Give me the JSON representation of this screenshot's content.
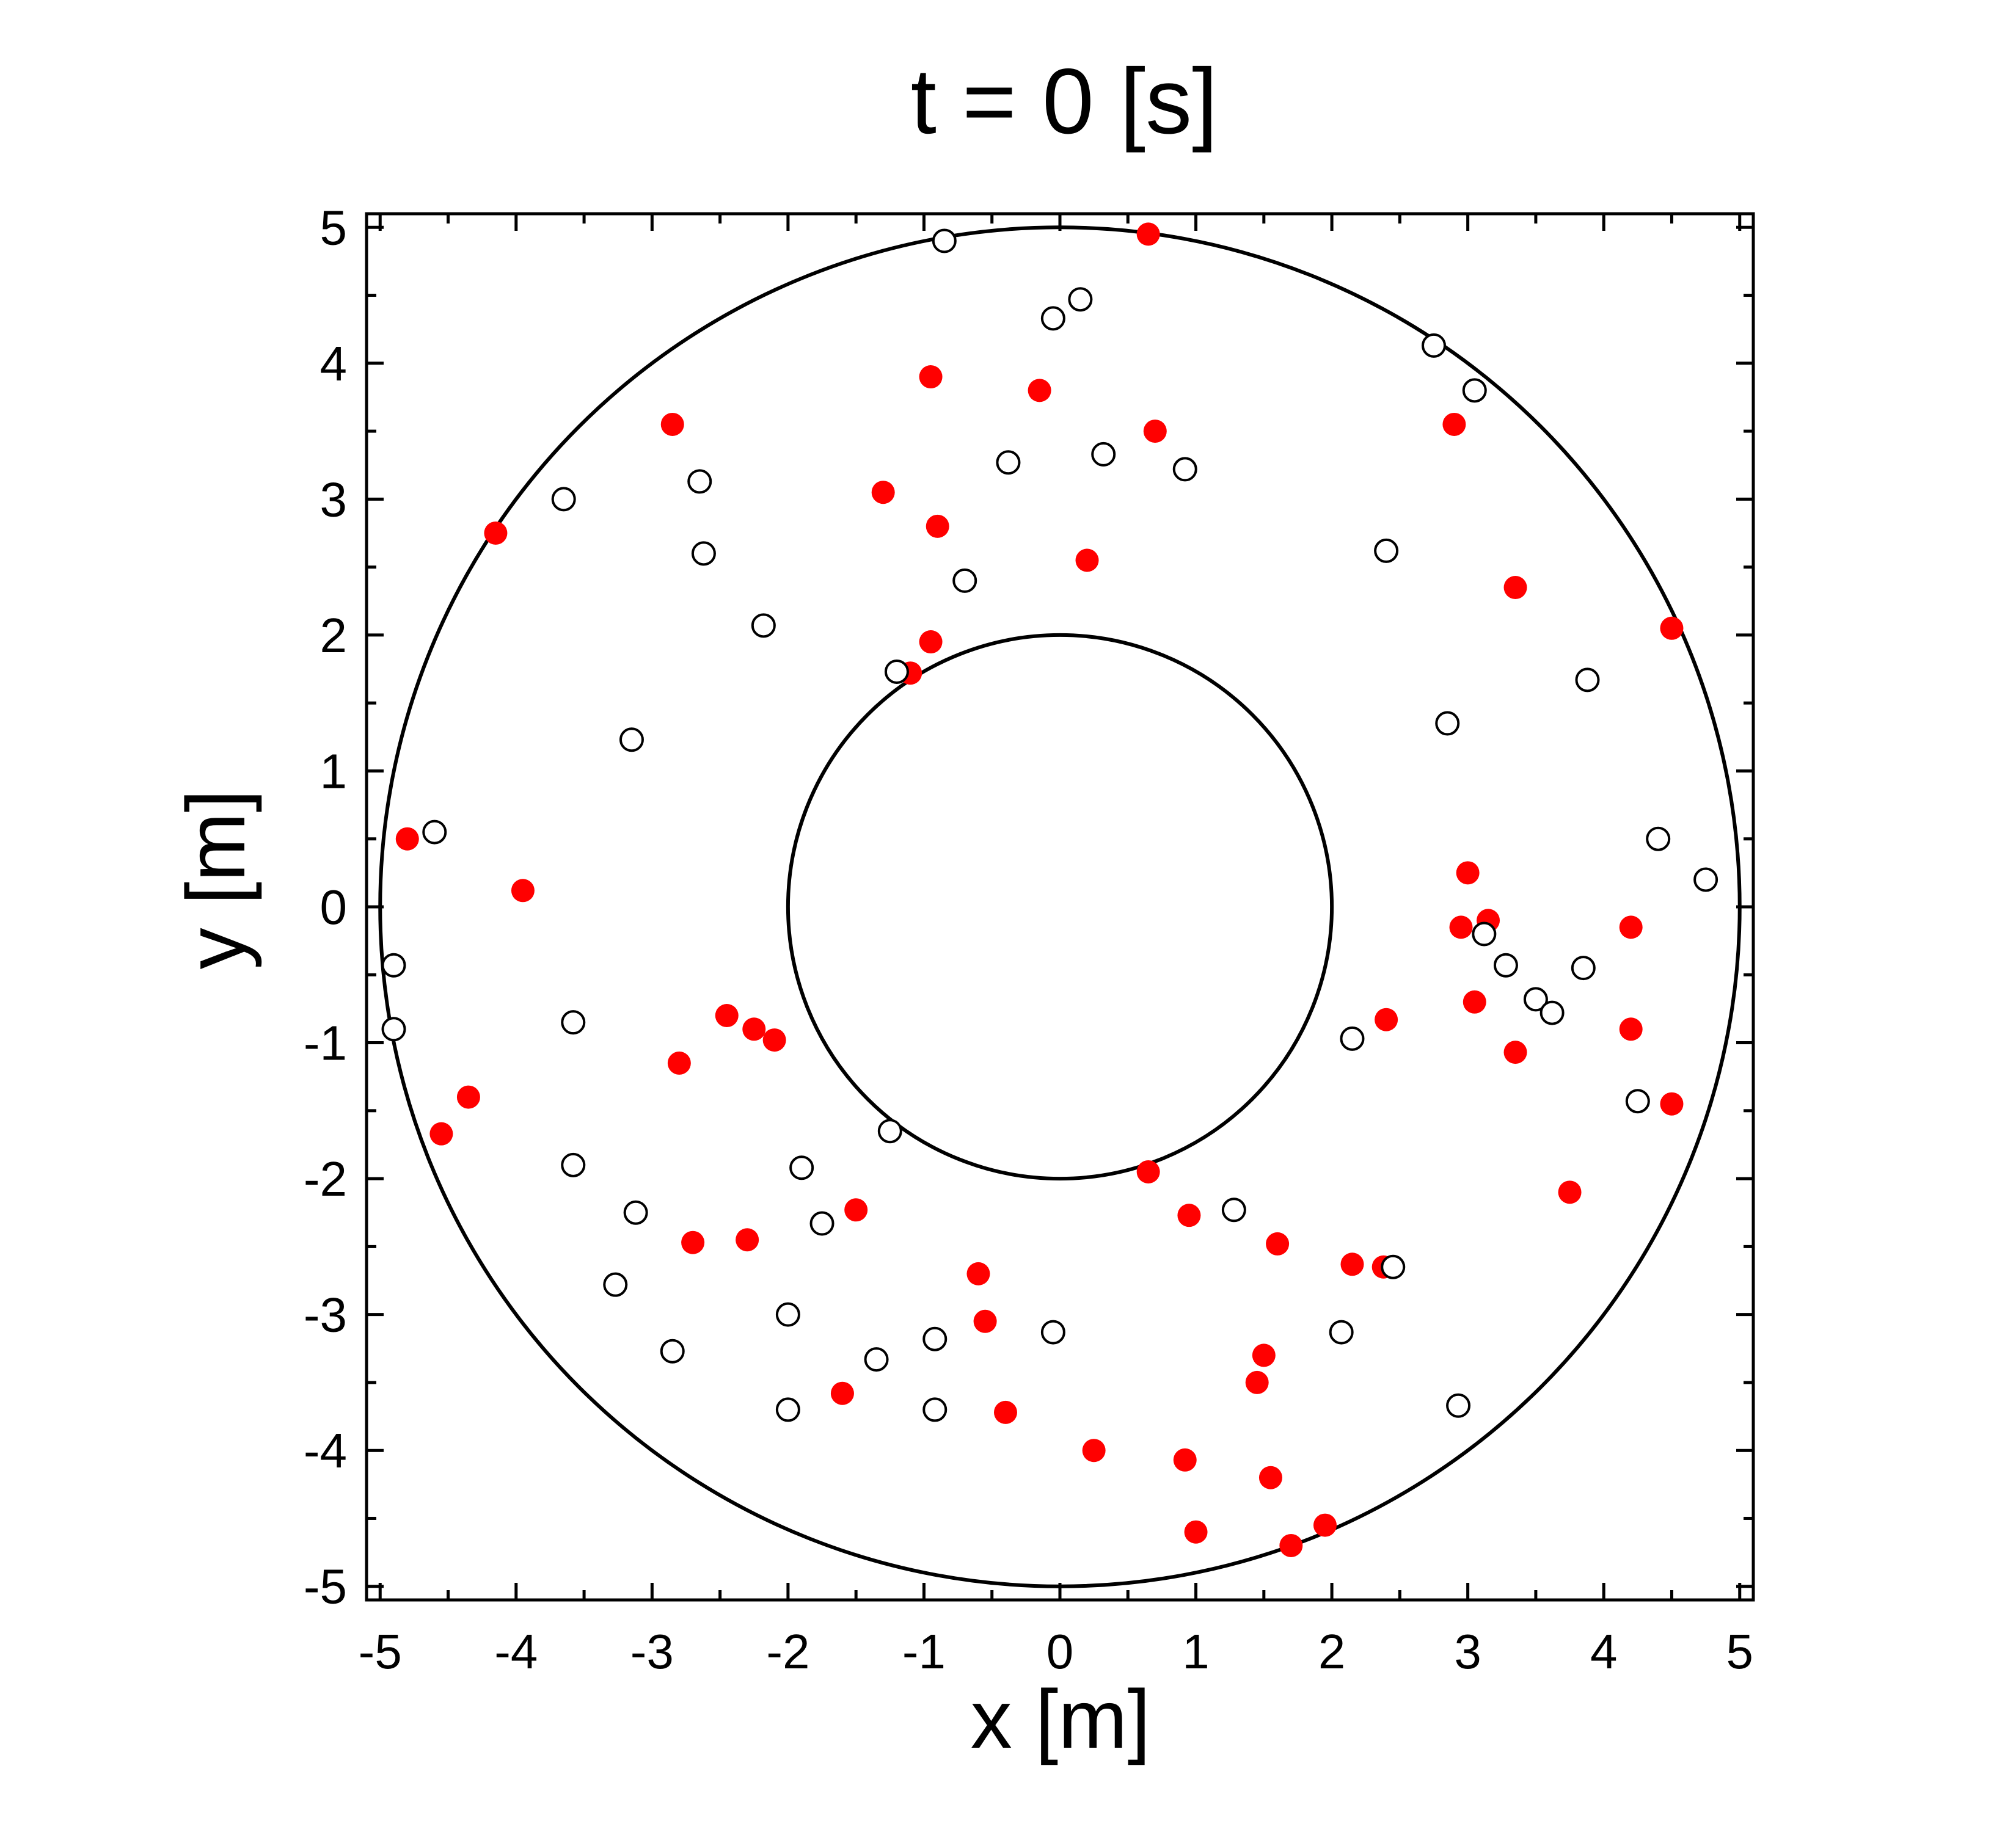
{
  "chart_data": {
    "type": "scatter",
    "title": "t = 0 [s]",
    "xlabel": "x [m]",
    "ylabel": "y [m]",
    "xlim": [
      -5.1,
      5.1
    ],
    "ylim": [
      -5.1,
      5.1
    ],
    "xticks": [
      "-5",
      "-4",
      "-3",
      "-2",
      "-1",
      "0",
      "1",
      "2",
      "3",
      "4",
      "5"
    ],
    "yticks": [
      "5",
      "4",
      "3",
      "2",
      "1",
      "0",
      "-1",
      "-2",
      "-3",
      "-4",
      "-5"
    ],
    "grid": false,
    "legend": "none",
    "boundaries": [
      {
        "shape": "circle",
        "center": [
          0,
          0
        ],
        "radius": 5
      },
      {
        "shape": "circle",
        "center": [
          0,
          0
        ],
        "radius": 2
      }
    ],
    "series": [
      {
        "marker": "filled-circle",
        "color": "#ff0000",
        "points": [
          [
            0.65,
            4.95
          ],
          [
            -0.95,
            3.9
          ],
          [
            -0.15,
            3.8
          ],
          [
            0.7,
            3.5
          ],
          [
            -2.85,
            3.55
          ],
          [
            2.9,
            3.55
          ],
          [
            -1.3,
            3.05
          ],
          [
            -0.9,
            2.8
          ],
          [
            0.2,
            2.55
          ],
          [
            3.35,
            2.35
          ],
          [
            -4.15,
            2.75
          ],
          [
            4.5,
            2.05
          ],
          [
            -0.95,
            1.95
          ],
          [
            -1.1,
            1.72
          ],
          [
            -4.8,
            0.5
          ],
          [
            -3.95,
            0.12
          ],
          [
            3.0,
            0.25
          ],
          [
            2.95,
            -0.15
          ],
          [
            3.15,
            -0.1
          ],
          [
            4.2,
            -0.15
          ],
          [
            -2.45,
            -0.8
          ],
          [
            -2.25,
            -0.9
          ],
          [
            -2.1,
            -0.98
          ],
          [
            2.4,
            -0.83
          ],
          [
            3.05,
            -0.7
          ],
          [
            4.2,
            -0.9
          ],
          [
            3.35,
            -1.07
          ],
          [
            -2.8,
            -1.15
          ],
          [
            -4.35,
            -1.4
          ],
          [
            -4.55,
            -1.67
          ],
          [
            4.5,
            -1.45
          ],
          [
            3.75,
            -2.1
          ],
          [
            0.65,
            -1.95
          ],
          [
            0.95,
            -2.27
          ],
          [
            -1.5,
            -2.23
          ],
          [
            -2.7,
            -2.47
          ],
          [
            -2.3,
            -2.45
          ],
          [
            1.6,
            -2.48
          ],
          [
            2.15,
            -2.63
          ],
          [
            2.38,
            -2.65
          ],
          [
            -0.6,
            -2.7
          ],
          [
            -0.55,
            -3.05
          ],
          [
            1.5,
            -3.3
          ],
          [
            1.45,
            -3.5
          ],
          [
            -1.6,
            -3.58
          ],
          [
            -0.4,
            -3.72
          ],
          [
            0.25,
            -4.0
          ],
          [
            0.92,
            -4.07
          ],
          [
            1.55,
            -4.2
          ],
          [
            1.0,
            -4.6
          ],
          [
            1.7,
            -4.7
          ],
          [
            1.95,
            -4.55
          ]
        ]
      },
      {
        "marker": "open-circle",
        "color": "#000000",
        "points": [
          [
            -0.85,
            4.9
          ],
          [
            -0.05,
            4.33
          ],
          [
            0.15,
            4.47
          ],
          [
            2.75,
            4.13
          ],
          [
            3.05,
            3.8
          ],
          [
            -0.38,
            3.27
          ],
          [
            0.32,
            3.33
          ],
          [
            0.92,
            3.22
          ],
          [
            -2.65,
            3.13
          ],
          [
            -3.65,
            3.0
          ],
          [
            -2.62,
            2.6
          ],
          [
            2.4,
            2.62
          ],
          [
            -0.7,
            2.4
          ],
          [
            -2.18,
            2.07
          ],
          [
            -1.2,
            1.73
          ],
          [
            3.88,
            1.67
          ],
          [
            2.85,
            1.35
          ],
          [
            -3.15,
            1.23
          ],
          [
            -4.6,
            0.55
          ],
          [
            4.4,
            0.5
          ],
          [
            4.75,
            0.2
          ],
          [
            3.12,
            -0.2
          ],
          [
            3.28,
            -0.43
          ],
          [
            -4.9,
            -0.43
          ],
          [
            3.5,
            -0.68
          ],
          [
            3.62,
            -0.78
          ],
          [
            3.85,
            -0.45
          ],
          [
            -3.58,
            -0.85
          ],
          [
            -4.9,
            -0.9
          ],
          [
            2.15,
            -0.97
          ],
          [
            4.25,
            -1.43
          ],
          [
            -1.25,
            -1.65
          ],
          [
            -3.58,
            -1.9
          ],
          [
            -1.9,
            -1.92
          ],
          [
            -3.12,
            -2.25
          ],
          [
            -1.75,
            -2.33
          ],
          [
            1.28,
            -2.23
          ],
          [
            2.45,
            -2.65
          ],
          [
            -3.27,
            -2.78
          ],
          [
            -2.0,
            -3.0
          ],
          [
            -2.85,
            -3.27
          ],
          [
            -0.05,
            -3.13
          ],
          [
            -0.92,
            -3.18
          ],
          [
            -1.35,
            -3.33
          ],
          [
            2.07,
            -3.13
          ],
          [
            2.93,
            -3.67
          ],
          [
            -2.0,
            -3.7
          ],
          [
            -0.92,
            -3.7
          ]
        ]
      }
    ]
  }
}
